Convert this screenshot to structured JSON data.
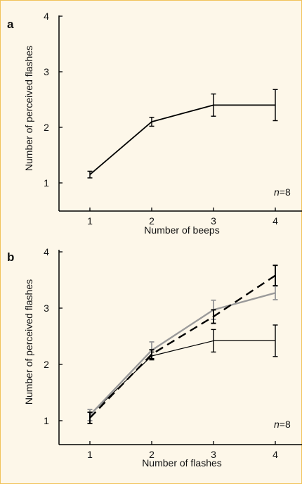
{
  "chart_data": [
    {
      "panel": "a",
      "type": "line",
      "xlabel": "Number of beeps",
      "ylabel": "Number of perceived flashes",
      "x": [
        1,
        2,
        3,
        4
      ],
      "xticks": [
        "1",
        "2",
        "3",
        "4"
      ],
      "yticks": [
        "1",
        "2",
        "3",
        "4"
      ],
      "xlim": [
        0.5,
        4.5
      ],
      "ylim": [
        0.8,
        4.0
      ],
      "annotation": {
        "italic": "n",
        "rest": "=8"
      },
      "series": [
        {
          "values": [
            1.15,
            2.1,
            2.4,
            2.4
          ],
          "errors": [
            0.06,
            0.08,
            0.2,
            0.28
          ],
          "color": "#000000",
          "style": "solid",
          "width": 1.8
        }
      ]
    },
    {
      "panel": "b",
      "type": "line",
      "xlabel": "Number of flashes",
      "ylabel": "Number of perceived flashes",
      "x": [
        1,
        2,
        3,
        4
      ],
      "xticks": [
        "1",
        "2",
        "3",
        "4"
      ],
      "yticks": [
        "1",
        "2",
        "3",
        "4"
      ],
      "xlim": [
        0.5,
        4.5
      ],
      "ylim": [
        0.8,
        4.0
      ],
      "annotation": {
        "italic": "n",
        "rest": "=8"
      },
      "series": [
        {
          "values": [
            1.1,
            2.15,
            2.42,
            2.42
          ],
          "errors": [
            0.1,
            0.07,
            0.2,
            0.28
          ],
          "color": "#000000",
          "style": "solid",
          "width": 1.2
        },
        {
          "values": [
            1.1,
            2.25,
            2.97,
            3.27
          ],
          "errors": [
            0.1,
            0.15,
            0.17,
            0.12
          ],
          "color": "#9a9a9a",
          "style": "solid",
          "width": 2.4
        },
        {
          "values": [
            1.05,
            2.18,
            2.85,
            3.58
          ],
          "errors": [
            0.1,
            0.08,
            0.12,
            0.18
          ],
          "color": "#000000",
          "style": "dashed",
          "width": 2.4
        }
      ]
    }
  ]
}
